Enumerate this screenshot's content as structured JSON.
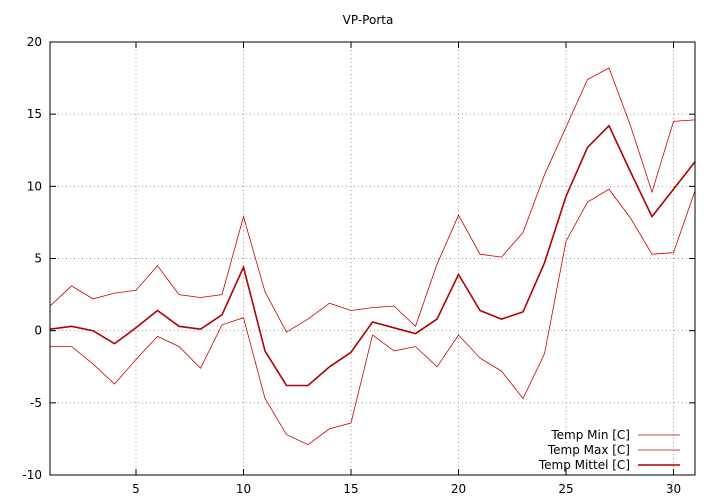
{
  "chart_data": {
    "type": "line",
    "title": "VP-Porta",
    "xlabel": "",
    "ylabel": "",
    "xlim": [
      1,
      31
    ],
    "ylim": [
      -10,
      20
    ],
    "x_ticks": [
      5,
      10,
      15,
      20,
      25,
      30
    ],
    "y_ticks": [
      -10,
      -5,
      0,
      5,
      10,
      15,
      20
    ],
    "grid": true,
    "legend_position": "bottom-right",
    "x": [
      1,
      2,
      3,
      4,
      5,
      6,
      7,
      8,
      9,
      10,
      11,
      12,
      13,
      14,
      15,
      16,
      17,
      18,
      19,
      20,
      21,
      22,
      23,
      24,
      25,
      26,
      27,
      28,
      29,
      30,
      31
    ],
    "series": [
      {
        "name": "Temp Min [C]",
        "color": "#cc0000",
        "width": "thin",
        "values": [
          -1.1,
          -1.1,
          -2.3,
          -3.7,
          -2.0,
          -0.4,
          -1.1,
          -2.6,
          0.4,
          0.9,
          -4.7,
          -7.2,
          -7.9,
          -6.8,
          -6.4,
          -0.3,
          -1.4,
          -1.1,
          -2.5,
          -0.3,
          -1.9,
          -2.8,
          -4.7,
          -1.6,
          6.2,
          8.9,
          9.8,
          7.8,
          5.3,
          5.4,
          9.7
        ]
      },
      {
        "name": "Temp Max [C]",
        "color": "#cc0000",
        "width": "thin",
        "values": [
          1.7,
          3.1,
          2.2,
          2.6,
          2.8,
          4.5,
          2.5,
          2.3,
          2.5,
          7.9,
          2.7,
          -0.1,
          0.8,
          1.9,
          1.4,
          1.6,
          1.7,
          0.3,
          4.6,
          8.0,
          5.3,
          5.1,
          6.8,
          10.8,
          14.1,
          17.4,
          18.2,
          14.2,
          9.6,
          14.5,
          14.6
        ]
      },
      {
        "name": "Temp Mittel [C]",
        "color": "#b00000",
        "width": "thick",
        "values": [
          0.1,
          0.3,
          0.0,
          -0.9,
          0.2,
          1.4,
          0.3,
          0.1,
          1.1,
          4.4,
          -1.4,
          -3.8,
          -3.8,
          -2.5,
          -1.5,
          0.6,
          0.2,
          -0.2,
          0.8,
          3.9,
          1.4,
          0.8,
          1.3,
          4.7,
          9.3,
          12.7,
          14.2,
          11.0,
          7.9,
          9.8,
          11.7
        ]
      }
    ]
  }
}
